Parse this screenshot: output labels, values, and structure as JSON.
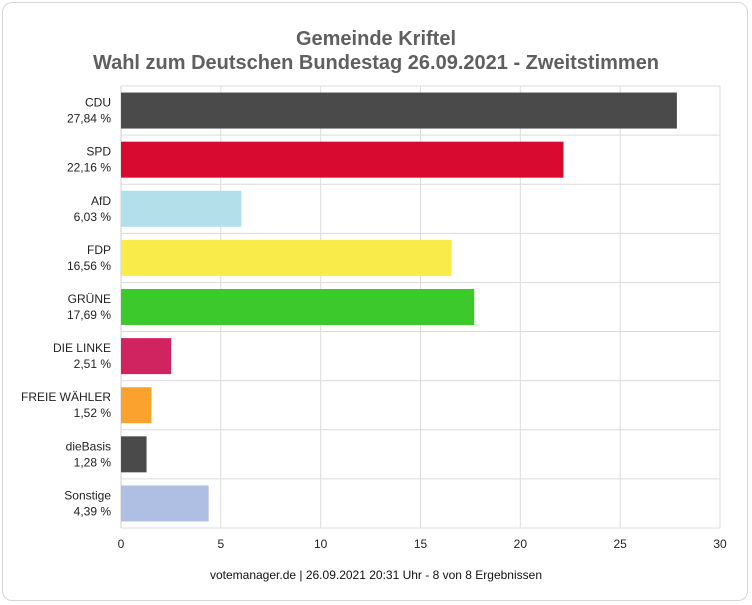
{
  "chart_data": {
    "type": "bar",
    "orientation": "horizontal",
    "title": "Gemeinde Kriftel",
    "subtitle": "Wahl zum Deutschen Bundestag 26.09.2021  - Zweitstimmen",
    "categories": [
      "CDU",
      "SPD",
      "AfD",
      "FDP",
      "GRÜNE",
      "DIE LINKE",
      "FREIE WÄHLER",
      "dieBasis",
      "Sonstige"
    ],
    "value_labels": [
      "27,84 %",
      "22,16 %",
      "6,03 %",
      "16,56 %",
      "17,69 %",
      "2,51 %",
      "1,52 %",
      "1,28 %",
      "4,39 %"
    ],
    "values": [
      27.84,
      22.16,
      6.03,
      16.56,
      17.69,
      2.51,
      1.52,
      1.28,
      4.39
    ],
    "colors": [
      "#4a4a4a",
      "#d90a2f",
      "#b3dfea",
      "#f8eb4a",
      "#3cc92b",
      "#cf2460",
      "#fba12e",
      "#4a4a4a",
      "#aebfe3"
    ],
    "xlim": [
      0,
      30
    ],
    "xticks": [
      0,
      5,
      10,
      15,
      20,
      25,
      30
    ],
    "grid": true,
    "xlabel": "",
    "ylabel": ""
  },
  "footer": "votemanager.de | 26.09.2021 20:31 Uhr - 8 von 8 Ergebnissen"
}
